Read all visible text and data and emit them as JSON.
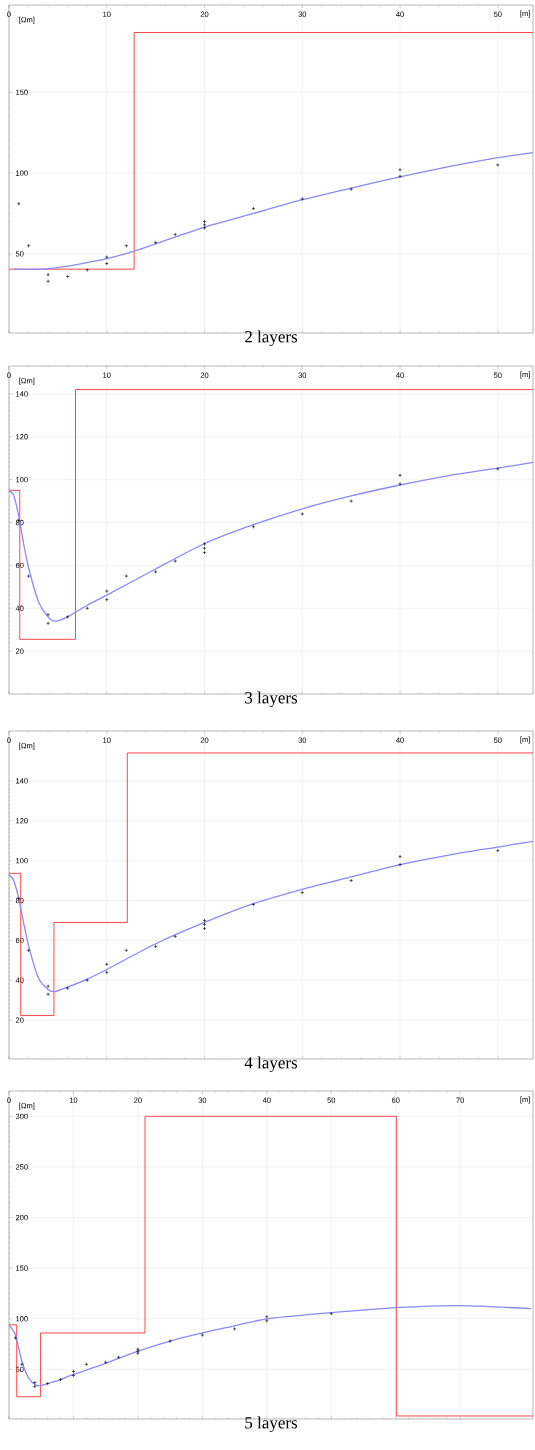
{
  "chart_data": [
    {
      "type": "line",
      "title": "2 layers",
      "xlabel": "[m]",
      "ylabel": "[Ωm]",
      "xlim": [
        0,
        53.6
      ],
      "ylim": [
        1,
        204
      ],
      "xticks": [
        0,
        10,
        20,
        30,
        40,
        50
      ],
      "yticks": [
        50,
        100,
        150
      ],
      "grid": true,
      "series": [
        {
          "type": "step",
          "color": "#ff3333",
          "x": [
            0,
            12.8,
            53.6
          ],
          "values": [
            40.5,
            187,
            187
          ]
        },
        {
          "type": "line",
          "color": "#8888ff",
          "x": [
            0.5,
            3.3,
            5,
            7.5,
            10,
            12.8,
            20,
            25,
            30,
            35,
            40,
            45,
            50,
            53.6
          ],
          "values": [
            40.5,
            40.5,
            41.5,
            44,
            47,
            51.7,
            66.5,
            75,
            83.5,
            90.7,
            97.7,
            104,
            109.5,
            112.7
          ]
        },
        {
          "type": "scatter",
          "marker": "cross",
          "color": "#000000",
          "x": [
            1,
            2,
            4,
            4,
            6,
            8,
            10,
            10,
            12,
            15,
            17,
            20,
            20,
            20,
            25,
            30,
            35,
            40,
            40,
            50
          ],
          "values": [
            81,
            55,
            37,
            33,
            36,
            40,
            48,
            44,
            55,
            57,
            62,
            70,
            68,
            66,
            78,
            84,
            90,
            102,
            98,
            105
          ]
        }
      ]
    },
    {
      "type": "line",
      "title": "3 layers",
      "xlabel": "[m]",
      "ylabel": "[Ωm]",
      "xlim": [
        0,
        53.6
      ],
      "ylim": [
        0,
        153
      ],
      "xticks": [
        0,
        10,
        20,
        30,
        40,
        50
      ],
      "yticks": [
        20,
        40,
        60,
        80,
        100,
        120,
        140
      ],
      "grid": true,
      "series": [
        {
          "type": "step",
          "color": "#ff3333",
          "x": [
            0,
            1.1,
            6.8,
            53.6
          ],
          "values": [
            95,
            25.5,
            142,
            142
          ]
        },
        {
          "type": "line",
          "color": "#8888ff",
          "x": [
            0,
            0.5,
            1,
            1.5,
            2,
            3,
            4,
            4.7,
            6,
            8,
            10,
            15,
            20,
            25,
            30,
            35,
            40,
            45,
            50,
            53.6
          ],
          "values": [
            95,
            92.4,
            82.9,
            70,
            59,
            43.3,
            36,
            34,
            36,
            41.4,
            46.1,
            58.3,
            70.2,
            79,
            86.4,
            92.4,
            97.5,
            101.9,
            105.4,
            108
          ]
        },
        {
          "type": "scatter",
          "marker": "cross",
          "color": "#000000",
          "x": [
            1,
            2,
            4,
            4,
            6,
            8,
            10,
            10,
            12,
            15,
            17,
            20,
            20,
            20,
            25,
            30,
            35,
            40,
            40,
            50
          ],
          "values": [
            81,
            55,
            37,
            33,
            36,
            40,
            48,
            44,
            55,
            57,
            62,
            70,
            68,
            66,
            78,
            84,
            90,
            102,
            98,
            105
          ]
        }
      ]
    },
    {
      "type": "line",
      "title": "4 layers",
      "xlabel": "[m]",
      "ylabel": "[Ωm]",
      "xlim": [
        0,
        53.6
      ],
      "ylim": [
        0.5,
        165
      ],
      "xticks": [
        0,
        10,
        20,
        30,
        40,
        50
      ],
      "yticks": [
        20,
        40,
        60,
        80,
        100,
        120,
        140
      ],
      "grid": true,
      "series": [
        {
          "type": "step",
          "color": "#ff3333",
          "x": [
            0,
            1.2,
            4.6,
            12.1,
            53.6
          ],
          "values": [
            93.6,
            22.3,
            69,
            154,
            154
          ]
        },
        {
          "type": "line",
          "color": "#8888ff",
          "x": [
            0,
            0.5,
            1,
            1.5,
            2,
            3,
            4,
            4.7,
            6,
            8,
            10,
            15,
            20,
            25,
            30,
            35,
            40,
            45,
            50,
            53.6
          ],
          "values": [
            93,
            89.8,
            81,
            68.7,
            57.4,
            41.2,
            35.3,
            34.3,
            36.6,
            40.6,
            45.4,
            58.3,
            69,
            78.4,
            85.6,
            91.8,
            98,
            102.8,
            106.8,
            109.7
          ]
        },
        {
          "type": "scatter",
          "marker": "cross",
          "color": "#000000",
          "x": [
            1,
            2,
            4,
            4,
            6,
            8,
            10,
            10,
            12,
            15,
            17,
            20,
            20,
            20,
            25,
            30,
            35,
            40,
            40,
            50
          ],
          "values": [
            81,
            55,
            37,
            33,
            36,
            40,
            48,
            44,
            55,
            57,
            62,
            70,
            68,
            66,
            78,
            84,
            90,
            102,
            98,
            105
          ]
        }
      ]
    },
    {
      "type": "line",
      "title": "5 layers",
      "xlabel": "[m]",
      "ylabel": "[Ωm]",
      "xlim": [
        0,
        81.3
      ],
      "ylim": [
        1,
        325
      ],
      "xticks": [
        0,
        10,
        20,
        30,
        40,
        50,
        60,
        70
      ],
      "yticks": [
        50,
        100,
        150,
        200,
        250,
        300
      ],
      "grid": true,
      "series": [
        {
          "type": "step",
          "color": "#ff3333",
          "x": [
            0,
            1.2,
            4.9,
            21.1,
            60.1,
            81.3
          ],
          "values": [
            94,
            23,
            86,
            300,
            4,
            4
          ]
        },
        {
          "type": "line",
          "color": "#8888ff",
          "x": [
            0,
            1,
            2,
            3,
            4,
            5,
            6,
            8,
            10,
            15,
            20,
            25,
            30,
            35,
            40,
            50,
            60,
            70,
            81
          ],
          "values": [
            94,
            84,
            58,
            42,
            35,
            34,
            36,
            40,
            45,
            56,
            68,
            78,
            86,
            93,
            100,
            106,
            111,
            113,
            110
          ]
        },
        {
          "type": "scatter",
          "marker": "cross",
          "color": "#000000",
          "x": [
            1,
            2,
            4,
            4,
            6,
            8,
            10,
            10,
            12,
            15,
            17,
            20,
            20,
            20,
            25,
            30,
            35,
            40,
            40,
            50
          ],
          "values": [
            81,
            55,
            37,
            33,
            36,
            40,
            48,
            44,
            55,
            57,
            62,
            70,
            68,
            66,
            78,
            84,
            90,
            102,
            98,
            105
          ]
        }
      ]
    }
  ]
}
